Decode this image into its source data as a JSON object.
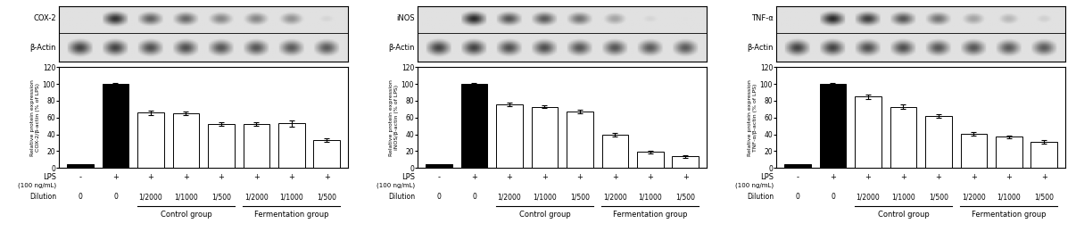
{
  "chart_data": [
    {
      "type": "bar",
      "ylabel": "Relative protein expression\nCOX-2/β-actin (% of LPS)",
      "blot_labels": [
        "COX-2",
        "β-Actin"
      ],
      "categories": [
        null,
        null,
        null,
        null,
        null,
        null,
        null,
        null
      ],
      "values": [
        5,
        100,
        66,
        65,
        52,
        52,
        53,
        33
      ],
      "errors": [
        null,
        1.5,
        2.5,
        2.0,
        2.0,
        2.0,
        3.5,
        2.0
      ],
      "colors": [
        "black",
        "black",
        "white",
        "white",
        "white",
        "white",
        "white",
        "white"
      ],
      "ylim": [
        0,
        120
      ],
      "yticks": [
        0,
        20,
        40,
        60,
        80,
        100,
        120
      ],
      "blot_protein_intensity": [
        0.05,
        0.85,
        0.65,
        0.62,
        0.5,
        0.5,
        0.45,
        0.18
      ],
      "blot_actin_intensity": [
        0.8,
        0.8,
        0.75,
        0.75,
        0.72,
        0.72,
        0.7,
        0.7
      ],
      "lps_label": "LPS",
      "lps_sublabel": "(100 ng/mL)",
      "dilution_label": "Dilution",
      "lps_row": [
        "-",
        "+",
        "+",
        "+",
        "+",
        "+",
        "+",
        "+"
      ],
      "dilution_row": [
        "0",
        "0",
        "1/2000",
        "1/1000",
        "1/500",
        "1/2000",
        "1/1000",
        "1/500"
      ],
      "group_row": [
        null,
        null,
        "Control group",
        "Control group",
        "Control group",
        "Fermentation group",
        "Fermentation group",
        "Fermentation group"
      ]
    },
    {
      "type": "bar",
      "ylabel": "Relative protein expression\niNOS/β-actin (% of LPS)",
      "blot_labels": [
        "iNOS",
        "β-Actin"
      ],
      "categories": [
        null,
        null,
        null,
        null,
        null,
        null,
        null,
        null
      ],
      "values": [
        5,
        100,
        76,
        73,
        67,
        40,
        19,
        14
      ],
      "errors": [
        null,
        1.5,
        2.0,
        2.0,
        2.0,
        2.0,
        2.0,
        1.5
      ],
      "colors": [
        "black",
        "black",
        "white",
        "white",
        "white",
        "white",
        "white",
        "white"
      ],
      "ylim": [
        0,
        120
      ],
      "yticks": [
        0,
        20,
        40,
        60,
        80,
        100,
        120
      ],
      "blot_protein_intensity": [
        0.05,
        0.88,
        0.7,
        0.68,
        0.58,
        0.38,
        0.18,
        0.13
      ],
      "blot_actin_intensity": [
        0.8,
        0.8,
        0.75,
        0.75,
        0.72,
        0.72,
        0.7,
        0.7
      ],
      "lps_label": "LPS",
      "lps_sublabel": "(100 ng/mL)",
      "dilution_label": "Dilution",
      "lps_row": [
        "-",
        "+",
        "+",
        "+",
        "+",
        "+",
        "+",
        "+"
      ],
      "dilution_row": [
        "0",
        "0",
        "1/2000",
        "1/1000",
        "1/500",
        "1/2000",
        "1/1000",
        "1/500"
      ],
      "group_row": [
        null,
        null,
        "Control group",
        "Control group",
        "Control group",
        "Fermentation group",
        "Fermentation group",
        "Fermentation group"
      ]
    },
    {
      "type": "bar",
      "ylabel": "Relative protein expression\nTNF-α/β-actin (% of LPS)",
      "blot_labels": [
        "TNF-α",
        "β-Actin"
      ],
      "categories": [
        null,
        null,
        null,
        null,
        null,
        null,
        null,
        null
      ],
      "values": [
        5,
        100,
        85,
        73,
        62,
        41,
        37,
        31
      ],
      "errors": [
        null,
        1.5,
        2.5,
        2.5,
        2.5,
        2.0,
        2.0,
        2.0
      ],
      "colors": [
        "black",
        "black",
        "white",
        "white",
        "white",
        "white",
        "white",
        "white"
      ],
      "ylim": [
        0,
        120
      ],
      "yticks": [
        0,
        20,
        40,
        60,
        80,
        100,
        120
      ],
      "blot_protein_intensity": [
        0.05,
        0.88,
        0.8,
        0.7,
        0.58,
        0.38,
        0.3,
        0.2
      ],
      "blot_actin_intensity": [
        0.8,
        0.8,
        0.75,
        0.75,
        0.72,
        0.72,
        0.7,
        0.7
      ],
      "lps_label": "LPS",
      "lps_sublabel": "(100 ng/mL)",
      "dilution_label": "Dilution",
      "lps_row": [
        "-",
        "+",
        "+",
        "+",
        "+",
        "+",
        "+",
        "+"
      ],
      "dilution_row": [
        "0",
        "0",
        "1/2000",
        "1/1000",
        "1/500",
        "1/2000",
        "1/1000",
        "1/500"
      ],
      "group_row": [
        null,
        null,
        "Control group",
        "Control group",
        "Control group",
        "Fermentation group",
        "Fermentation group",
        "Fermentation group"
      ]
    }
  ]
}
